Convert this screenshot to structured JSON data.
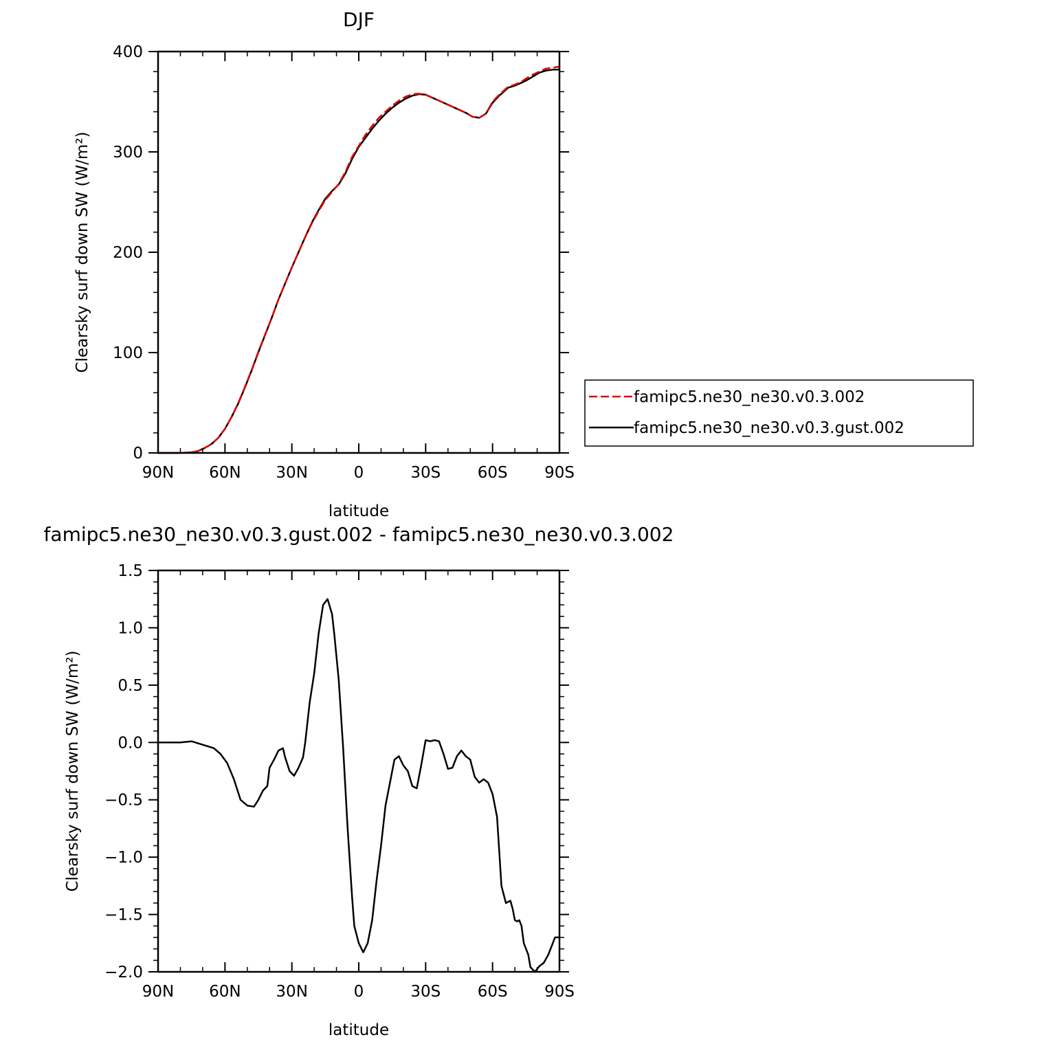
{
  "chart_data": [
    {
      "type": "line",
      "title": "DJF",
      "xlabel": "latitude",
      "ylabel": "Clearsky surf down SW (W/m²)",
      "xlim": [
        -90,
        90
      ],
      "ylim": [
        0,
        400
      ],
      "xticks": [
        {
          "value": -90,
          "label": "90N"
        },
        {
          "value": -60,
          "label": "60N"
        },
        {
          "value": -30,
          "label": "30N"
        },
        {
          "value": 0,
          "label": "0"
        },
        {
          "value": 30,
          "label": "30S"
        },
        {
          "value": 60,
          "label": "60S"
        },
        {
          "value": 90,
          "label": "90S"
        }
      ],
      "yticks": [
        {
          "value": 0,
          "label": "0"
        },
        {
          "value": 100,
          "label": "100"
        },
        {
          "value": 200,
          "label": "200"
        },
        {
          "value": 300,
          "label": "300"
        },
        {
          "value": 400,
          "label": "400"
        }
      ],
      "grid": false,
      "legend": {
        "placement": "right",
        "entries": [
          {
            "name": "famipc5.ne30_ne30.v0.3.002",
            "color": "#e00000",
            "dash": "dashed"
          },
          {
            "name": "famipc5.ne30_ne30.v0.3.gust.002",
            "color": "#000000",
            "dash": "solid"
          }
        ]
      },
      "series": [
        {
          "name": "famipc5.ne30_ne30.v0.3.002",
          "color": "#e00000",
          "dash": "dashed",
          "x": [
            -90,
            -80,
            -75,
            -72,
            -69,
            -66,
            -63,
            -60,
            -57,
            -54,
            -51,
            -48,
            -45,
            -42,
            -39,
            -36,
            -33,
            -30,
            -27,
            -24,
            -21,
            -18,
            -15,
            -12,
            -9,
            -6,
            -3,
            0,
            3,
            6,
            9,
            12,
            15,
            18,
            21,
            24,
            27,
            30,
            33,
            36,
            39,
            42,
            45,
            48,
            51,
            54,
            57,
            60,
            63,
            65,
            67,
            70,
            73,
            75,
            78,
            81,
            84,
            87,
            90
          ],
          "y": [
            0,
            0,
            0.5,
            2,
            5,
            9,
            15,
            24,
            36,
            50,
            66,
            83,
            101,
            118,
            135,
            153,
            169,
            185,
            200,
            215,
            229,
            241,
            252,
            260,
            268,
            280,
            295,
            306,
            317,
            326,
            334,
            340,
            346,
            351,
            355,
            357.5,
            358,
            357,
            354,
            351,
            348,
            345,
            342,
            339,
            335,
            334,
            338,
            350,
            357,
            361,
            365,
            367,
            370,
            373,
            377,
            380,
            383,
            384,
            385
          ]
        },
        {
          "name": "famipc5.ne30_ne30.v0.3.gust.002",
          "color": "#000000",
          "dash": "solid",
          "x": [
            -90,
            -80,
            -75,
            -72,
            -69,
            -66,
            -63,
            -60,
            -57,
            -54,
            -51,
            -48,
            -45,
            -42,
            -39,
            -36,
            -33,
            -30,
            -27,
            -24,
            -21,
            -18,
            -15,
            -12,
            -9,
            -6,
            -3,
            0,
            3,
            6,
            9,
            12,
            15,
            18,
            21,
            24,
            27,
            30,
            33,
            36,
            39,
            42,
            45,
            48,
            51,
            54,
            57,
            60,
            63,
            65,
            67,
            70,
            73,
            75,
            78,
            81,
            84,
            87,
            90
          ],
          "y": [
            0,
            0,
            0.5,
            2,
            5,
            9,
            15,
            24,
            36,
            49.5,
            65.5,
            82.5,
            100.5,
            117.5,
            134.8,
            153,
            169,
            185,
            200.1,
            215.3,
            229.7,
            242,
            253.2,
            261,
            267.5,
            278.5,
            293,
            305,
            314,
            323,
            331,
            338,
            344,
            349,
            353,
            356,
            357.5,
            357,
            354,
            351,
            348,
            345,
            342,
            339,
            335,
            334,
            338,
            349,
            356,
            360,
            364,
            366,
            369,
            371,
            375,
            379,
            381,
            382,
            382
          ]
        }
      ]
    },
    {
      "type": "line",
      "title": "famipc5.ne30_ne30.v0.3.gust.002 - famipc5.ne30_ne30.v0.3.002",
      "xlabel": "latitude",
      "ylabel": "Clearsky surf down SW (W/m²)",
      "xlim": [
        -90,
        90
      ],
      "ylim": [
        -2.0,
        1.5
      ],
      "xticks": [
        {
          "value": -90,
          "label": "90N"
        },
        {
          "value": -60,
          "label": "60N"
        },
        {
          "value": -30,
          "label": "30N"
        },
        {
          "value": 0,
          "label": "0"
        },
        {
          "value": 30,
          "label": "30S"
        },
        {
          "value": 60,
          "label": "60S"
        },
        {
          "value": 90,
          "label": "90S"
        }
      ],
      "yticks": [
        {
          "value": 1.5,
          "label": "1.5"
        },
        {
          "value": 1.0,
          "label": "1.0"
        },
        {
          "value": 0.5,
          "label": "0.5"
        },
        {
          "value": 0.0,
          "label": "0.0"
        },
        {
          "value": -0.5,
          "label": "−0.5"
        },
        {
          "value": -1.0,
          "label": "−1.0"
        },
        {
          "value": -1.5,
          "label": "−1.5"
        },
        {
          "value": -2.0,
          "label": "−2.0"
        }
      ],
      "grid": false,
      "series": [
        {
          "name": "",
          "color": "#000000",
          "dash": "solid",
          "x": [
            -90,
            -80,
            -75,
            -70,
            -65,
            -62,
            -59,
            -56,
            -53,
            -50,
            -47,
            -45,
            -43,
            -41,
            -40,
            -38,
            -36,
            -34,
            -33,
            -31,
            -29,
            -27,
            -25,
            -24,
            -22,
            -20,
            -18,
            -16,
            -14,
            -12,
            -11,
            -9,
            -7,
            -5,
            -3,
            -2,
            0,
            2,
            4,
            6,
            8,
            10,
            12,
            14,
            16,
            18,
            20,
            22,
            24,
            26,
            28,
            30,
            32,
            34,
            36,
            38,
            40,
            42,
            44,
            46,
            48,
            50,
            52,
            54,
            56,
            58,
            60,
            62,
            64,
            66,
            68,
            69,
            70,
            71,
            72,
            73,
            74,
            76,
            77,
            79,
            81,
            83,
            85,
            87,
            88,
            89,
            90
          ],
          "y": [
            0,
            0,
            0.01,
            -0.02,
            -0.05,
            -0.1,
            -0.18,
            -0.32,
            -0.5,
            -0.55,
            -0.56,
            -0.5,
            -0.42,
            -0.38,
            -0.22,
            -0.15,
            -0.07,
            -0.05,
            -0.13,
            -0.25,
            -0.29,
            -0.22,
            -0.13,
            0.0,
            0.35,
            0.6,
            0.95,
            1.2,
            1.25,
            1.12,
            0.95,
            0.55,
            -0.05,
            -0.75,
            -1.35,
            -1.6,
            -1.75,
            -1.83,
            -1.75,
            -1.55,
            -1.2,
            -0.9,
            -0.55,
            -0.35,
            -0.15,
            -0.12,
            -0.2,
            -0.25,
            -0.38,
            -0.4,
            -0.2,
            0.02,
            0.01,
            0.02,
            0.01,
            -0.1,
            -0.23,
            -0.22,
            -0.12,
            -0.07,
            -0.12,
            -0.15,
            -0.3,
            -0.35,
            -0.32,
            -0.35,
            -0.45,
            -0.65,
            -1.25,
            -1.4,
            -1.38,
            -1.45,
            -1.55,
            -1.56,
            -1.55,
            -1.6,
            -1.75,
            -1.85,
            -1.96,
            -2.0,
            -1.95,
            -1.92,
            -1.85,
            -1.75,
            -1.7,
            -1.7,
            -1.7
          ]
        }
      ]
    }
  ]
}
